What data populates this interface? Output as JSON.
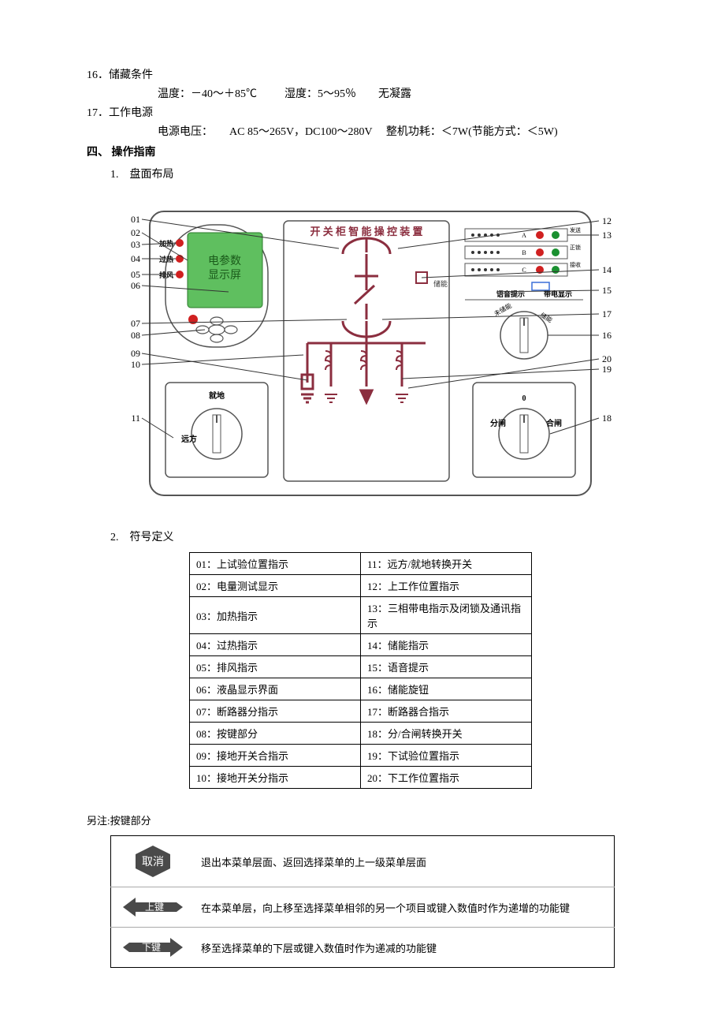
{
  "spec": {
    "item16_num": "16．",
    "item16_title": "储藏条件",
    "item16_detail_temp_label": "温度：",
    "item16_detail_temp_val": "－40～＋85℃",
    "item16_detail_hum_label": "湿度：",
    "item16_detail_hum_val": "5～95％",
    "item16_detail_cond": "无凝露",
    "item17_num": "17．",
    "item17_title": "工作电源",
    "item17_detail_volt_label": "电源电压：",
    "item17_detail_volt_val": "AC 85～265V，DC100～280V",
    "item17_detail_pow_label": "整机功耗：",
    "item17_detail_pow_val": "＜7W(节能方式：＜5W)"
  },
  "section4": "四、 操作指南",
  "sub1": "1.　盘面布局",
  "sub2": "2.　符号定义",
  "diagram": {
    "title": "开 关 柜 智 能 操 控 装 置",
    "lcd_label1": "电参数",
    "lcd_label2": "显示屏",
    "led_jiaRe": "加热",
    "led_guoRe": "过热",
    "led_paiFeng": "排风",
    "chuNeng": "储能",
    "phaseA": "A",
    "phaseA_r": "发送",
    "phaseB": "B",
    "phaseB_r": "正锁",
    "phaseC": "C",
    "phaseC_r": "接收",
    "yuYin": "语音提示",
    "daiDian": "带电显示",
    "knob_left_top": "就地",
    "knob_left_bottom": "远方",
    "knob_right_0": "0",
    "knob_right_fen": "分闸",
    "knob_right_he": "合闸",
    "knob_cn_wei": "未储能",
    "knob_cn_chu": "储能",
    "callouts": {
      "c01": "01",
      "c02": "02",
      "c03": "03",
      "c04": "04",
      "c05": "05",
      "c06": "06",
      "c07": "07",
      "c08": "08",
      "c09": "09",
      "c10": "10",
      "c11": "11",
      "c12": "12",
      "c13": "13",
      "c14": "14",
      "c15": "15",
      "c16": "16",
      "c17": "17",
      "c18": "18",
      "c19": "19",
      "c20": "20"
    },
    "colors": {
      "panel_stroke": "#555555",
      "maroon": "#8b2e3f",
      "red_led": "#d02020",
      "green_led": "#1a9030",
      "lcd_bg": "#5fbf5f",
      "knob_fill": "#ffffff",
      "blue_box": "#3a6fd8"
    }
  },
  "symbols": [
    [
      "01：上试验位置指示",
      "11：远方/就地转换开关"
    ],
    [
      "02：电量测试显示",
      "12：上工作位置指示"
    ],
    [
      "03：加热指示",
      "13：三相带电指示及闭锁及通讯指示"
    ],
    [
      "04：过热指示",
      "14：储能指示"
    ],
    [
      "05：排风指示",
      "15：语音提示"
    ],
    [
      "06：液晶显示界面",
      "16：储能旋钮"
    ],
    [
      "07：断路器分指示",
      "17：断路器合指示"
    ],
    [
      "08：按键部分",
      "18：分/合闸转换开关"
    ],
    [
      "09：接地开关合指示",
      "19：下试验位置指示"
    ],
    [
      "10：接地开关分指示",
      "20：下工作位置指示"
    ]
  ],
  "note": "另注:按键部分",
  "buttons": [
    {
      "shape": "hex",
      "label": "取消",
      "desc": "退出本菜单层面、返回选择菜单的上一级菜单层面"
    },
    {
      "shape": "larrow",
      "label": "上键",
      "desc": "在本菜单层，向上移至选择菜单相邻的另一个项目或键入数值时作为递增的功能键"
    },
    {
      "shape": "rarrow",
      "label": "下键",
      "desc": "移至选择菜单的下层或键入数值时作为递减的功能键"
    }
  ]
}
